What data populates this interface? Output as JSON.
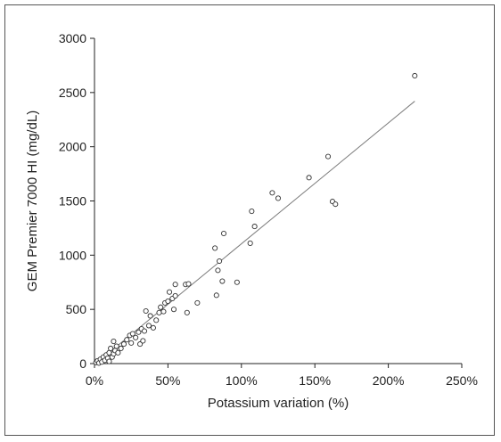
{
  "chart_data": {
    "type": "scatter",
    "xlabel": "Potassium variation (%)",
    "ylabel": "GEM Premier 7000 HI (mg/dL)",
    "xlim": [
      0,
      250
    ],
    "ylim": [
      0,
      3000
    ],
    "x_ticks": [
      0,
      50,
      100,
      150,
      200,
      250
    ],
    "x_tick_labels": [
      "0%",
      "50%",
      "100%",
      "150%",
      "200%",
      "250%"
    ],
    "y_ticks": [
      0,
      500,
      1000,
      1500,
      2000,
      2500,
      3000
    ],
    "y_tick_labels": [
      "0",
      "500",
      "1000",
      "1500",
      "2000",
      "2500",
      "3000"
    ],
    "grid": false,
    "legend": "none",
    "points": [
      {
        "x": 1,
        "y": 10
      },
      {
        "x": 2,
        "y": 25
      },
      {
        "x": 3,
        "y": 5
      },
      {
        "x": 4,
        "y": 40
      },
      {
        "x": 5,
        "y": 15
      },
      {
        "x": 6,
        "y": 60
      },
      {
        "x": 7,
        "y": 30
      },
      {
        "x": 8,
        "y": 80
      },
      {
        "x": 9,
        "y": 50
      },
      {
        "x": 10,
        "y": 100
      },
      {
        "x": 10,
        "y": 20
      },
      {
        "x": 11,
        "y": 140
      },
      {
        "x": 12,
        "y": 60
      },
      {
        "x": 13,
        "y": 90
      },
      {
        "x": 13,
        "y": 205
      },
      {
        "x": 14,
        "y": 120
      },
      {
        "x": 15,
        "y": 160
      },
      {
        "x": 16,
        "y": 100
      },
      {
        "x": 18,
        "y": 140
      },
      {
        "x": 20,
        "y": 180
      },
      {
        "x": 22,
        "y": 220
      },
      {
        "x": 24,
        "y": 260
      },
      {
        "x": 25,
        "y": 190
      },
      {
        "x": 26,
        "y": 275
      },
      {
        "x": 28,
        "y": 240
      },
      {
        "x": 30,
        "y": 290
      },
      {
        "x": 31,
        "y": 180
      },
      {
        "x": 32,
        "y": 320
      },
      {
        "x": 33,
        "y": 210
      },
      {
        "x": 34,
        "y": 300
      },
      {
        "x": 35,
        "y": 485
      },
      {
        "x": 37,
        "y": 350
      },
      {
        "x": 38,
        "y": 440
      },
      {
        "x": 40,
        "y": 330
      },
      {
        "x": 42,
        "y": 400
      },
      {
        "x": 44,
        "y": 470
      },
      {
        "x": 45,
        "y": 520
      },
      {
        "x": 47,
        "y": 480
      },
      {
        "x": 48,
        "y": 560
      },
      {
        "x": 50,
        "y": 575
      },
      {
        "x": 51,
        "y": 660
      },
      {
        "x": 53,
        "y": 600
      },
      {
        "x": 54,
        "y": 500
      },
      {
        "x": 55,
        "y": 625
      },
      {
        "x": 55,
        "y": 730
      },
      {
        "x": 62,
        "y": 730
      },
      {
        "x": 63,
        "y": 470
      },
      {
        "x": 64,
        "y": 735
      },
      {
        "x": 70,
        "y": 560
      },
      {
        "x": 82,
        "y": 1065
      },
      {
        "x": 83,
        "y": 630
      },
      {
        "x": 84,
        "y": 860
      },
      {
        "x": 85,
        "y": 945
      },
      {
        "x": 87,
        "y": 760
      },
      {
        "x": 88,
        "y": 1200
      },
      {
        "x": 97,
        "y": 750
      },
      {
        "x": 106,
        "y": 1110
      },
      {
        "x": 107,
        "y": 1405
      },
      {
        "x": 109,
        "y": 1265
      },
      {
        "x": 121,
        "y": 1575
      },
      {
        "x": 125,
        "y": 1525
      },
      {
        "x": 146,
        "y": 1715
      },
      {
        "x": 159,
        "y": 1910
      },
      {
        "x": 162,
        "y": 1495
      },
      {
        "x": 164,
        "y": 1470
      },
      {
        "x": 218,
        "y": 2655
      }
    ],
    "trendline": {
      "x": [
        0,
        218
      ],
      "y": [
        -10,
        2420
      ]
    }
  }
}
